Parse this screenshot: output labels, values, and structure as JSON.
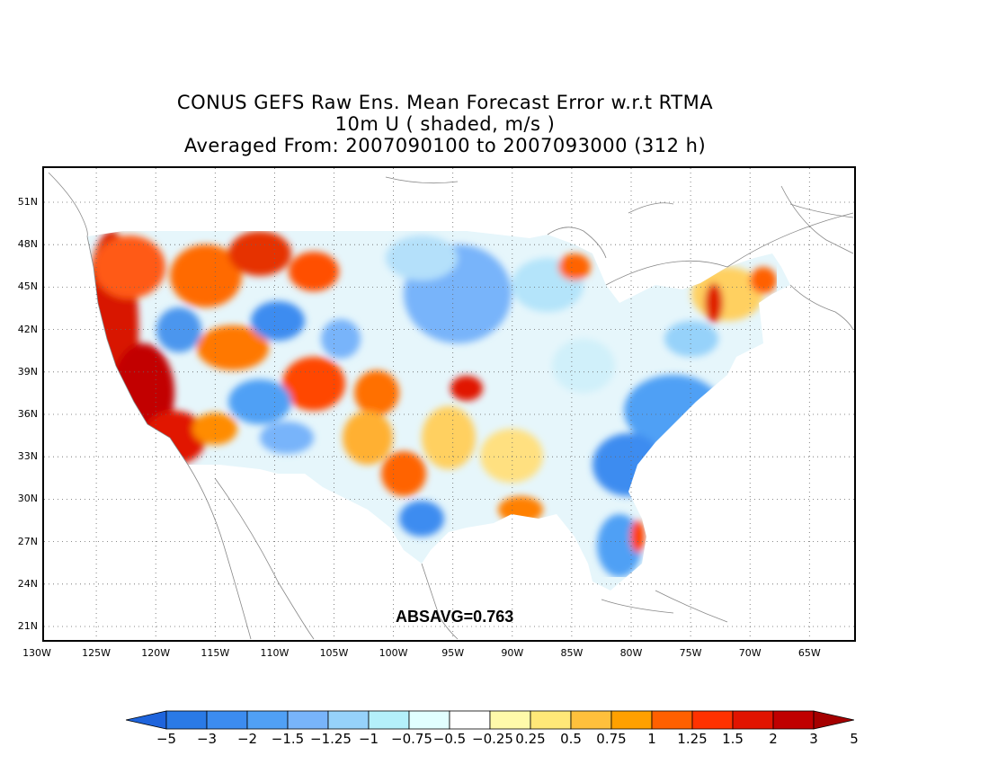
{
  "title": {
    "line1": "CONUS GEFS Raw Ens. Mean Forecast Error w.r.t RTMA",
    "line2": "10m U ( shaded, m/s )",
    "line3": "Averaged From: 2007090100 to 2007093000 (312 h)"
  },
  "map": {
    "lat_labels": [
      "51N",
      "48N",
      "45N",
      "42N",
      "39N",
      "36N",
      "33N",
      "30N",
      "27N",
      "24N",
      "21N"
    ],
    "lon_labels": [
      "130W",
      "125W",
      "120W",
      "115W",
      "110W",
      "105W",
      "100W",
      "95W",
      "90W",
      "85W",
      "80W",
      "75W",
      "70W",
      "65W"
    ],
    "absavg": "ABSAVG=0.763",
    "grid": true
  },
  "colorbar": {
    "labels": [
      "−5",
      "−3",
      "−2",
      "−1.5",
      "−1.25",
      "−1",
      "−0.75",
      "−0.5",
      "−0.25",
      "0.25",
      "0.5",
      "0.75",
      "1",
      "1.25",
      "1.5",
      "2",
      "3",
      "5"
    ],
    "colors": [
      "#1e64dc",
      "#2a7ae6",
      "#3c8cf0",
      "#50a0f5",
      "#78b4fa",
      "#96d2fa",
      "#b4f0fa",
      "#e1ffff",
      "#ffffff",
      "#fffaaa",
      "#ffe878",
      "#ffc03c",
      "#ffa000",
      "#ff6000",
      "#ff3200",
      "#e11400",
      "#c00000",
      "#a50000"
    ]
  },
  "colors": {
    "land_outline": "#888888",
    "grid": "#666666"
  }
}
